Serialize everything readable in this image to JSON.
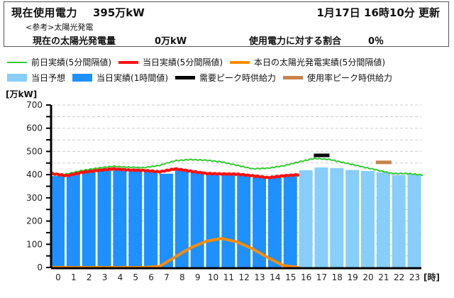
{
  "header": {
    "current_usage_label": "現在使用電力",
    "current_usage_value": "395万kW",
    "updated": "1月17日  16時10分 更新",
    "reference_note": "<参考>太陽光発電",
    "solar_label": "現在の太陽光発電量",
    "solar_value": "0万kW",
    "ratio_label": "使用電力に対する割合",
    "ratio_value": "0％"
  },
  "legend": {
    "row1": [
      {
        "label": "前日実績(5分間隔値)",
        "type": "line",
        "color": "#33cc33"
      },
      {
        "label": "当日実績(5分間隔値)",
        "type": "line",
        "color": "#ff1111"
      },
      {
        "label": "本日の太陽光発電実績(5分間隔値)",
        "type": "line",
        "color": "#ff8c00"
      }
    ],
    "row2": [
      {
        "label": "当日予想",
        "type": "box",
        "color": "#87cefa"
      },
      {
        "label": "当日実績(1時間値)",
        "type": "box",
        "color": "#1e90ff"
      },
      {
        "label": "需要ピーク時供給力",
        "type": "line",
        "color": "#000000"
      },
      {
        "label": "使用率ピーク時供給力",
        "type": "line",
        "color": "#c8824a"
      }
    ]
  },
  "axis": {
    "y_unit": "[万kW]",
    "x_unit": "[時]"
  },
  "colors": {
    "actual_bar": "#1e90ff",
    "forecast_bar": "#87cefa",
    "prev_day_line": "#33cc33",
    "today_line": "#ff1111",
    "solar_line": "#ff8c00",
    "demand_peak_supply": "#000000",
    "usage_peak_supply": "#c8824a",
    "grid": "#cccccc"
  },
  "chart_data": {
    "type": "bar",
    "title": "現在使用電力 395万kW",
    "xlabel": "[時]",
    "ylabel": "[万kW]",
    "ylim": [
      0,
      700
    ],
    "yticks": [
      0,
      100,
      200,
      300,
      400,
      500,
      600,
      700
    ],
    "grid": true,
    "legend_position": "top",
    "categories": [
      "0",
      "1",
      "2",
      "3",
      "4",
      "5",
      "6",
      "7",
      "8",
      "9",
      "10",
      "11",
      "12",
      "13",
      "14",
      "15",
      "16",
      "17",
      "18",
      "19",
      "20",
      "21",
      "22",
      "23"
    ],
    "series": [
      {
        "name": "当日実績(1時間値)",
        "type": "bar",
        "values": [
          394,
          404,
          414,
          419,
          425,
          419,
          414,
          404,
          421,
          414,
          404,
          403,
          398,
          392,
          387,
          396,
          null,
          null,
          null,
          null,
          null,
          null,
          null,
          null
        ]
      },
      {
        "name": "当日予想",
        "type": "bar",
        "values": [
          null,
          null,
          null,
          null,
          null,
          null,
          null,
          null,
          null,
          null,
          null,
          null,
          null,
          null,
          null,
          null,
          419,
          431,
          428,
          420,
          416,
          410,
          398,
          402
        ]
      },
      {
        "name": "前日実績(5分間隔値)",
        "type": "line",
        "hourly_approx": [
          400,
          403,
          418,
          428,
          436,
          432,
          430,
          440,
          460,
          465,
          462,
          455,
          440,
          425,
          428,
          438,
          455,
          470,
          465,
          450,
          435,
          420,
          405,
          405,
          398
        ]
      },
      {
        "name": "当日実績(5分間隔値)",
        "type": "line",
        "hourly_approx": [
          405,
          395,
          410,
          418,
          425,
          420,
          418,
          412,
          425,
          415,
          405,
          403,
          402,
          395,
          387,
          395,
          400
        ]
      },
      {
        "name": "本日の太陽光発電実績(5分間隔値)",
        "type": "line",
        "hourly_approx": [
          0,
          0,
          0,
          0,
          0,
          0,
          0,
          5,
          45,
          85,
          113,
          125,
          110,
          80,
          42,
          8,
          0
        ]
      },
      {
        "name": "需要ピーク時供給力",
        "type": "marker",
        "hour": 17,
        "value": 483
      },
      {
        "name": "使用率ピーク時供給力",
        "type": "marker",
        "hour": 21,
        "value": 453
      }
    ]
  }
}
